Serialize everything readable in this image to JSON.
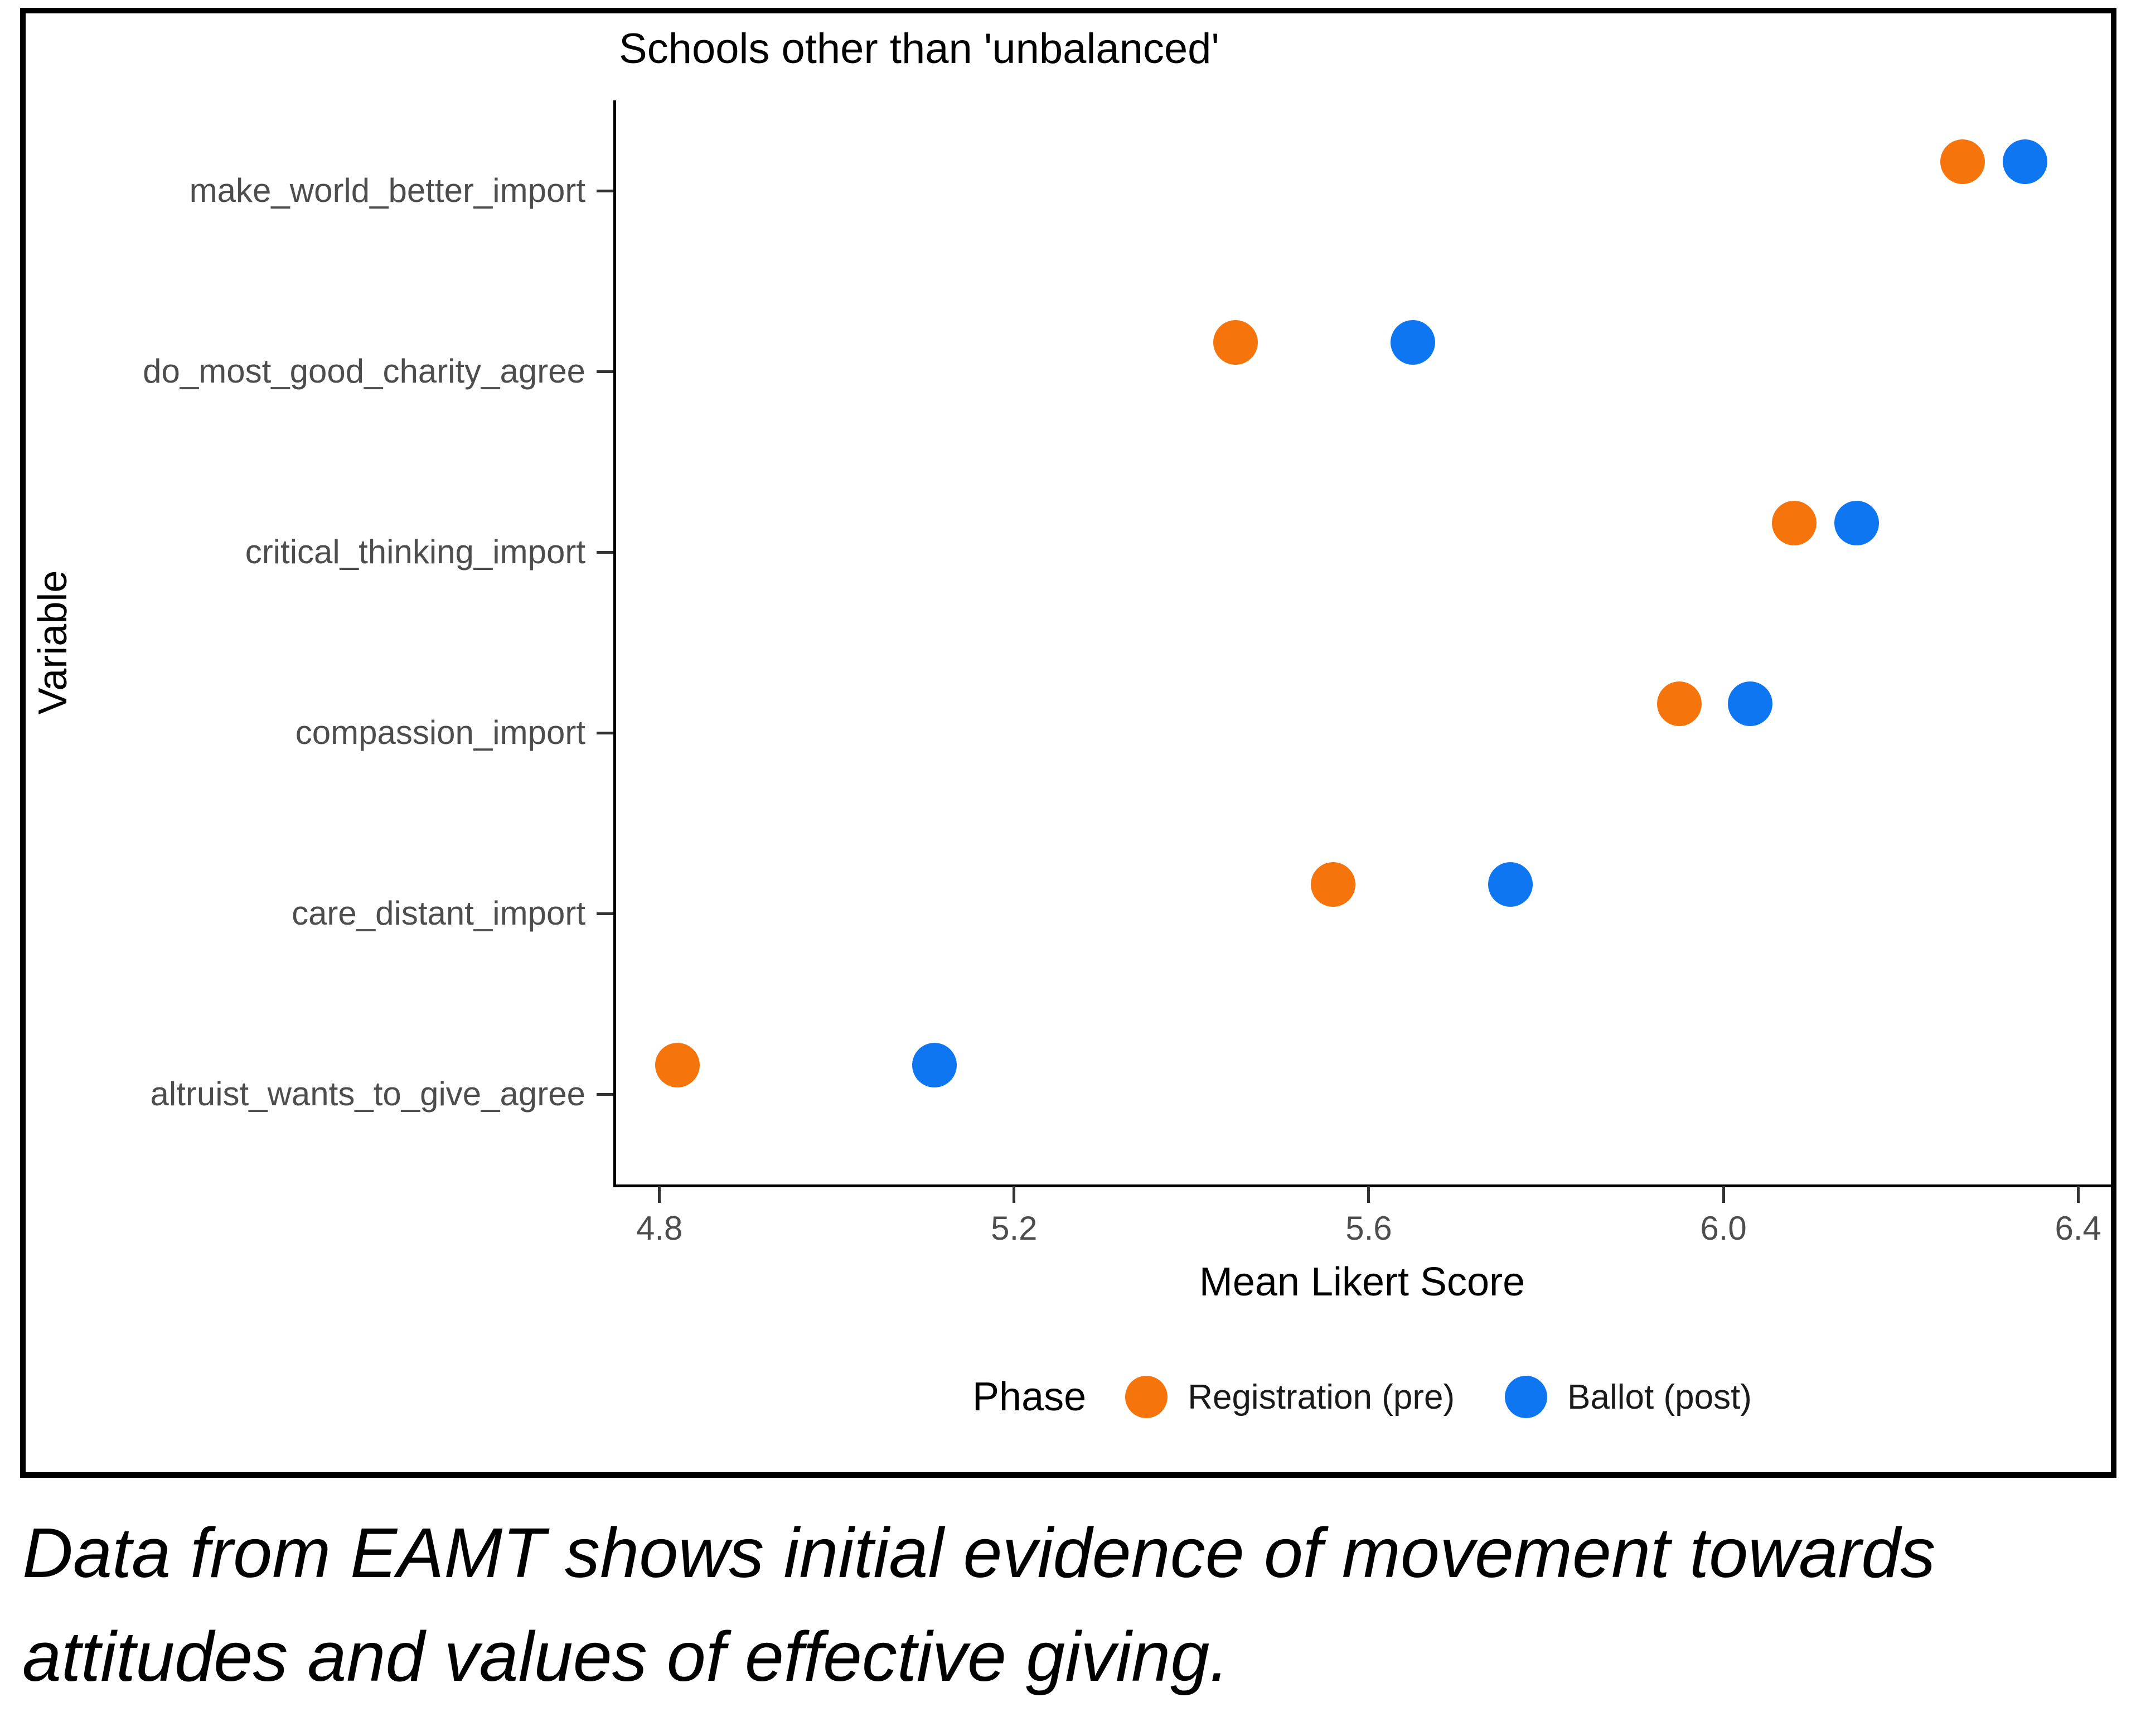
{
  "figure": {
    "title": "Schools other than 'unbalanced'",
    "x_axis_title": "Mean Likert Score",
    "y_axis_title": "Variable",
    "legend_title": "Phase"
  },
  "chart_data": {
    "type": "scatter",
    "orientation": "horizontal-dot-plot",
    "title": "Schools other than 'unbalanced'",
    "xlabel": "Mean Likert Score",
    "ylabel": "Variable",
    "grid": false,
    "legend_position": "bottom",
    "legend_title": "Phase",
    "xlim": [
      4.748,
      6.437
    ],
    "x_ticks": [
      4.8,
      5.2,
      5.6,
      6.0,
      6.4
    ],
    "x_tick_labels": [
      "4.8",
      "5.2",
      "5.6",
      "6.0",
      "6.4"
    ],
    "categories": [
      "make_world_better_import",
      "do_most_good_charity_agree",
      "critical_thinking_import",
      "compassion_import",
      "care_distant_import",
      "altruist_wants_to_give_agree"
    ],
    "series": [
      {
        "name": "Registration (pre)",
        "color": "#F5740C",
        "values": [
          6.27,
          5.45,
          6.08,
          5.95,
          5.56,
          4.82
        ]
      },
      {
        "name": "Ballot (post)",
        "color": "#0E76F0",
        "values": [
          6.34,
          5.65,
          6.15,
          6.03,
          5.76,
          5.11
        ]
      }
    ]
  },
  "colors": {
    "registration_pre": "#F5740C",
    "ballot_post": "#0E76F0",
    "axis_text": "#4d4d4d",
    "axis_line": "#000000"
  },
  "caption": {
    "lines": [
      "Data from EAMT shows initial evidence of movement towards",
      "attitudes and values of effective giving."
    ]
  }
}
